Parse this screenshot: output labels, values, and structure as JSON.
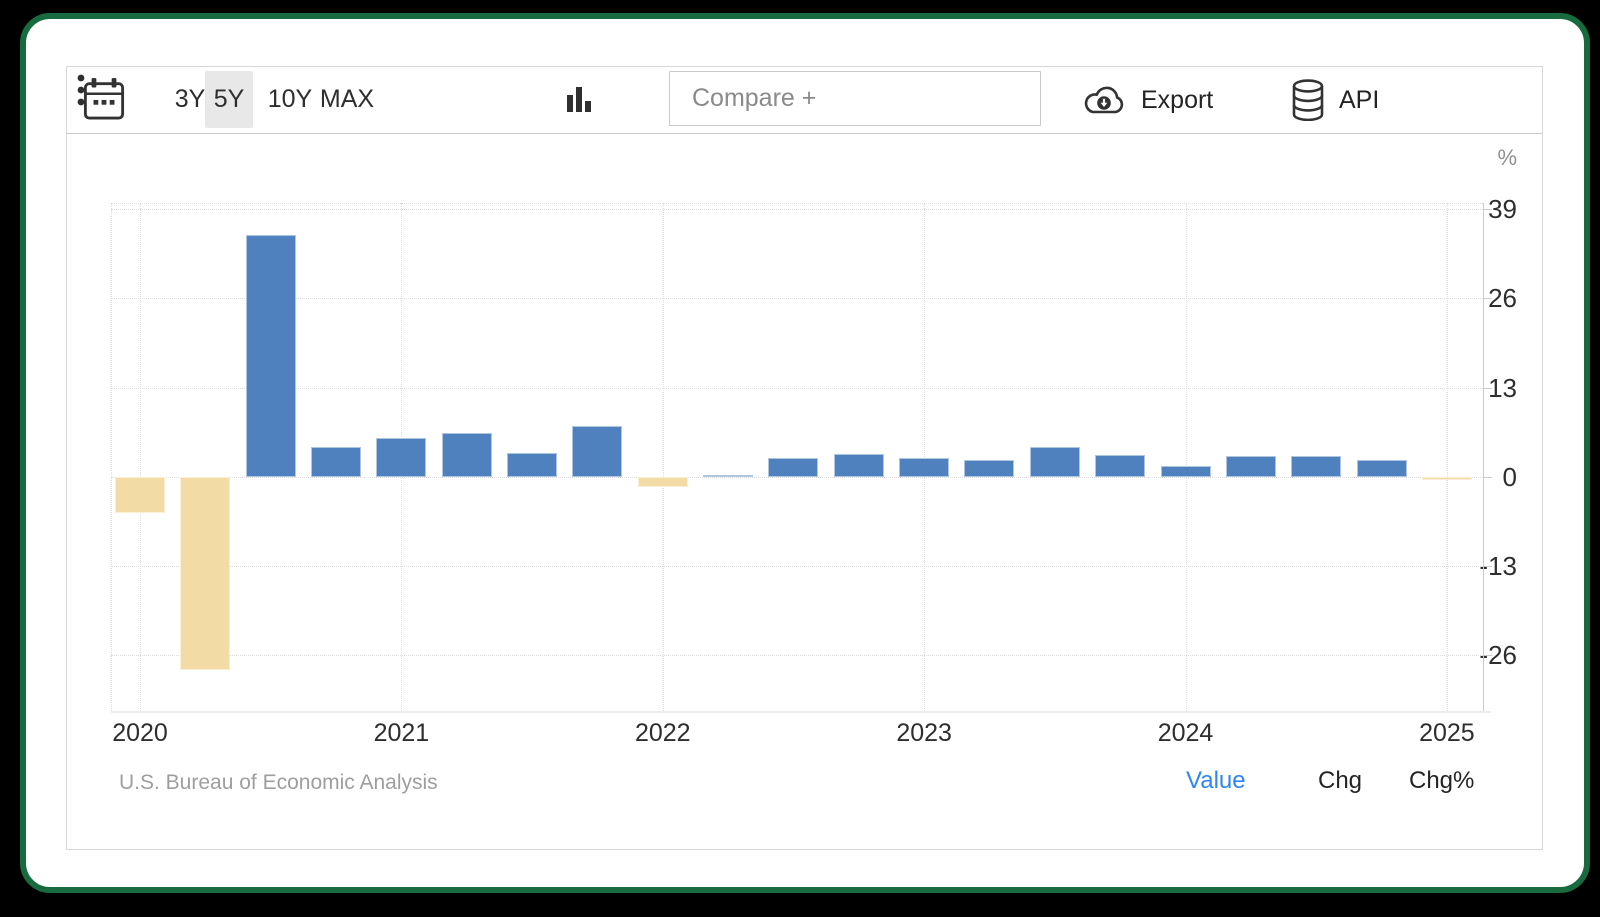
{
  "page": {
    "background_color": "#000000",
    "card_border_color": "#176b3e",
    "accent_blue": "#2e86f0"
  },
  "toolbar": {
    "calendar_icon": "calendar-icon",
    "ranges": [
      {
        "label": "3Y",
        "selected": false
      },
      {
        "label": "5Y",
        "selected": true
      },
      {
        "label": "10Y",
        "selected": false
      },
      {
        "label": "MAX",
        "selected": false
      }
    ],
    "chart_type_icon": "column-chart-icon",
    "compare_placeholder": "Compare +",
    "export_label": "Export",
    "export_icon": "cloud-download-icon",
    "api_label": "API",
    "api_icon": "database-icon",
    "menu_icon": "kebab-menu-icon"
  },
  "chart_data": {
    "type": "bar",
    "title": "",
    "unit": "%",
    "categories": [
      "2020 Q1",
      "2020 Q2",
      "2020 Q3",
      "2020 Q4",
      "2021 Q1",
      "2021 Q2",
      "2021 Q3",
      "2021 Q4",
      "2022 Q1",
      "2022 Q2",
      "2022 Q3",
      "2022 Q4",
      "2023 Q1",
      "2023 Q2",
      "2023 Q3",
      "2023 Q4",
      "2024 Q1",
      "2024 Q2",
      "2024 Q3",
      "2024 Q4",
      "2025 Q1"
    ],
    "values": [
      -5.3,
      -28.1,
      35.2,
      4.4,
      5.6,
      6.4,
      3.5,
      7.4,
      -1.4,
      0.3,
      2.7,
      3.4,
      2.8,
      2.4,
      4.4,
      3.2,
      1.6,
      3.0,
      3.1,
      2.4,
      -0.5
    ],
    "colors": {
      "positive": "#4e81bd",
      "negative": "#f3dba5"
    },
    "ylim": [
      -34.1,
      39.9
    ],
    "yticks": [
      39,
      26,
      13,
      0,
      -13,
      -26
    ],
    "x_year_labels": [
      "2020",
      "2021",
      "2022",
      "2023",
      "2024",
      "2025"
    ],
    "grid": "dotted",
    "legend": "none"
  },
  "footer": {
    "source": "U.S. Bureau of Economic Analysis",
    "links": [
      {
        "label": "Value",
        "active": true
      },
      {
        "label": "Chg",
        "active": false
      },
      {
        "label": "Chg%",
        "active": false
      }
    ]
  }
}
